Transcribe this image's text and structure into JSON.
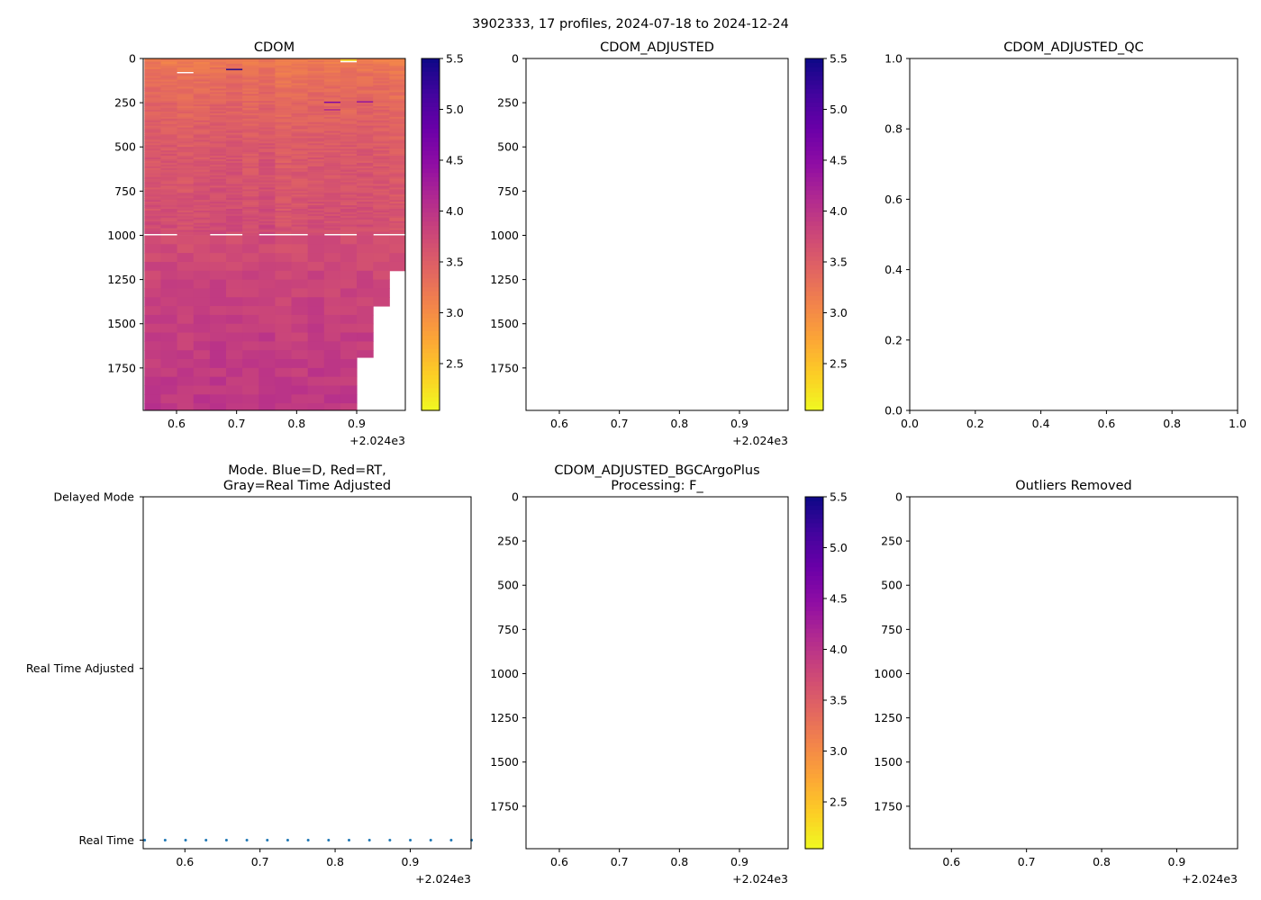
{
  "chart_data": {
    "suptitle": "3902333, 17 profiles, 2024-07-18 to 2024-12-24",
    "x_offset_label": "+2.024e3",
    "x_ticks": [
      "0.6",
      "0.7",
      "0.8",
      "0.9"
    ],
    "x_tick_values": [
      0.6,
      0.7,
      0.8,
      0.9
    ],
    "xlim": [
      0.5445,
      0.981
    ],
    "depth_ticks": [
      "0",
      "250",
      "500",
      "750",
      "1000",
      "1250",
      "1500",
      "1750"
    ],
    "depth_tick_values": [
      0,
      250,
      500,
      750,
      1000,
      1250,
      1500,
      1750
    ],
    "depth_lim": [
      1990,
      0
    ],
    "colorbar": {
      "colormap": "plasma_r",
      "vmin": 2.04,
      "vmax": 5.5,
      "ticks": [
        "2.5",
        "3.0",
        "3.5",
        "4.0",
        "4.5",
        "5.0",
        "5.5"
      ],
      "tick_values": [
        2.5,
        3.0,
        3.5,
        4.0,
        4.5,
        5.0,
        5.5
      ]
    },
    "panels": [
      {
        "id": "cdom",
        "type": "heatmap",
        "title": "CDOM",
        "profile_times": [
          0.5465,
          0.5737,
          0.6009,
          0.6281,
          0.6553,
          0.6825,
          0.7097,
          0.7369,
          0.7641,
          0.7913,
          0.8185,
          0.8457,
          0.8729,
          0.9001,
          0.9273,
          0.9545,
          0.9817
        ],
        "column_max_depth": [
          1990,
          1990,
          1990,
          1990,
          1990,
          1990,
          1990,
          1990,
          1990,
          1990,
          1990,
          1990,
          1990,
          1690,
          1400,
          1200
        ],
        "mean_profile": {
          "depth": [
            0,
            100,
            250,
            500,
            750,
            1000,
            1250,
            1500,
            1750,
            2000
          ],
          "value": [
            3.15,
            3.3,
            3.4,
            3.55,
            3.62,
            3.7,
            3.8,
            3.87,
            3.92,
            3.96
          ]
        },
        "gap_depth": [
          985,
          1000
        ],
        "gap_columns": [
          0,
          1,
          4,
          5,
          7,
          8,
          9,
          11,
          12,
          14,
          15
        ],
        "anomalies": [
          {
            "column": 2,
            "depth": 80,
            "value": null
          },
          {
            "column": 5,
            "depth": 62,
            "value": 5.4
          },
          {
            "column": 11,
            "depth": 248,
            "value": 4.6
          },
          {
            "column": 11,
            "depth": 290,
            "value": 4.2
          },
          {
            "column": 12,
            "depth": 10,
            "value": 2.1
          },
          {
            "column": 12,
            "depth": 18,
            "value": null
          },
          {
            "column": 13,
            "depth": 245,
            "value": 4.5
          }
        ]
      },
      {
        "id": "cdom-adjusted",
        "type": "heatmap",
        "title": "CDOM_ADJUSTED"
      },
      {
        "id": "cdom-adjusted-qc",
        "type": "empty",
        "title": "CDOM_ADJUSTED_QC",
        "x_ticks": [
          "0.0",
          "0.2",
          "0.4",
          "0.6",
          "0.8",
          "1.0"
        ],
        "y_ticks": [
          "0.0",
          "0.2",
          "0.4",
          "0.6",
          "0.8",
          "1.0"
        ],
        "xlim": [
          0,
          1
        ],
        "ylim": [
          0,
          1
        ]
      },
      {
        "id": "mode",
        "type": "scatter",
        "title_lines": [
          "Mode. Blue=D, Red=RT,",
          "Gray=Real Time Adjusted"
        ],
        "y_categories": [
          "Real Time",
          "Real Time Adjusted",
          "Delayed Mode"
        ],
        "ylim": [
          0.95,
          3.0
        ],
        "point_color": "#1f77b4",
        "points_x": [
          0.5465,
          0.5737,
          0.6009,
          0.6281,
          0.6553,
          0.6825,
          0.7097,
          0.7369,
          0.7641,
          0.7913,
          0.8185,
          0.8457,
          0.8729,
          0.9001,
          0.9273,
          0.9545,
          0.9817
        ],
        "points_y": [
          1,
          1,
          1,
          1,
          1,
          1,
          1,
          1,
          1,
          1,
          1,
          1,
          1,
          1,
          1,
          1,
          1
        ]
      },
      {
        "id": "bgcargoplus",
        "type": "heatmap",
        "title_lines": [
          "CDOM_ADJUSTED_BGCArgoPlus",
          "Processing: F_"
        ]
      },
      {
        "id": "outliers-removed",
        "type": "heatmap",
        "title": "Outliers Removed"
      }
    ]
  }
}
